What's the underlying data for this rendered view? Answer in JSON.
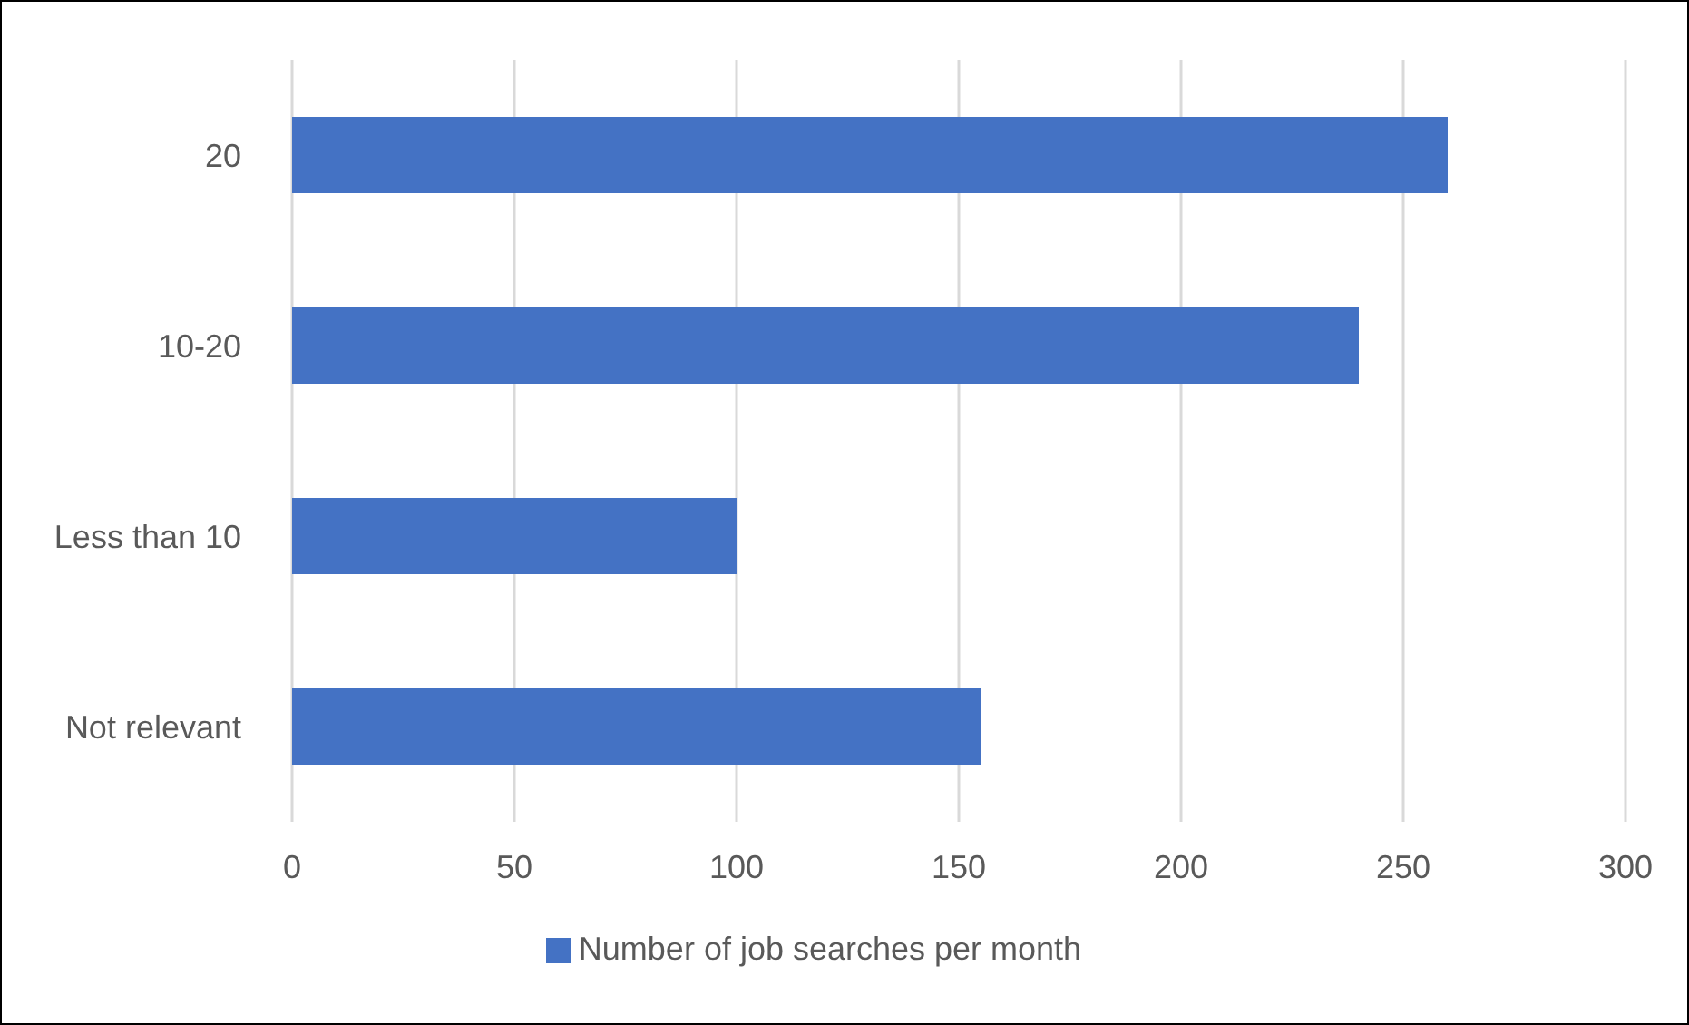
{
  "chart_data": {
    "type": "bar",
    "orientation": "horizontal",
    "categories": [
      "20",
      "10-20",
      "Less than 10",
      "Not relevant"
    ],
    "series": [
      {
        "name": "Number of job searches per month",
        "color": "#4472c4",
        "values": [
          260,
          240,
          100,
          155
        ]
      }
    ],
    "xlim": [
      0,
      300
    ],
    "xticks": [
      0,
      50,
      100,
      150,
      200,
      250,
      300
    ],
    "grid": "x",
    "legend": "bottom"
  }
}
